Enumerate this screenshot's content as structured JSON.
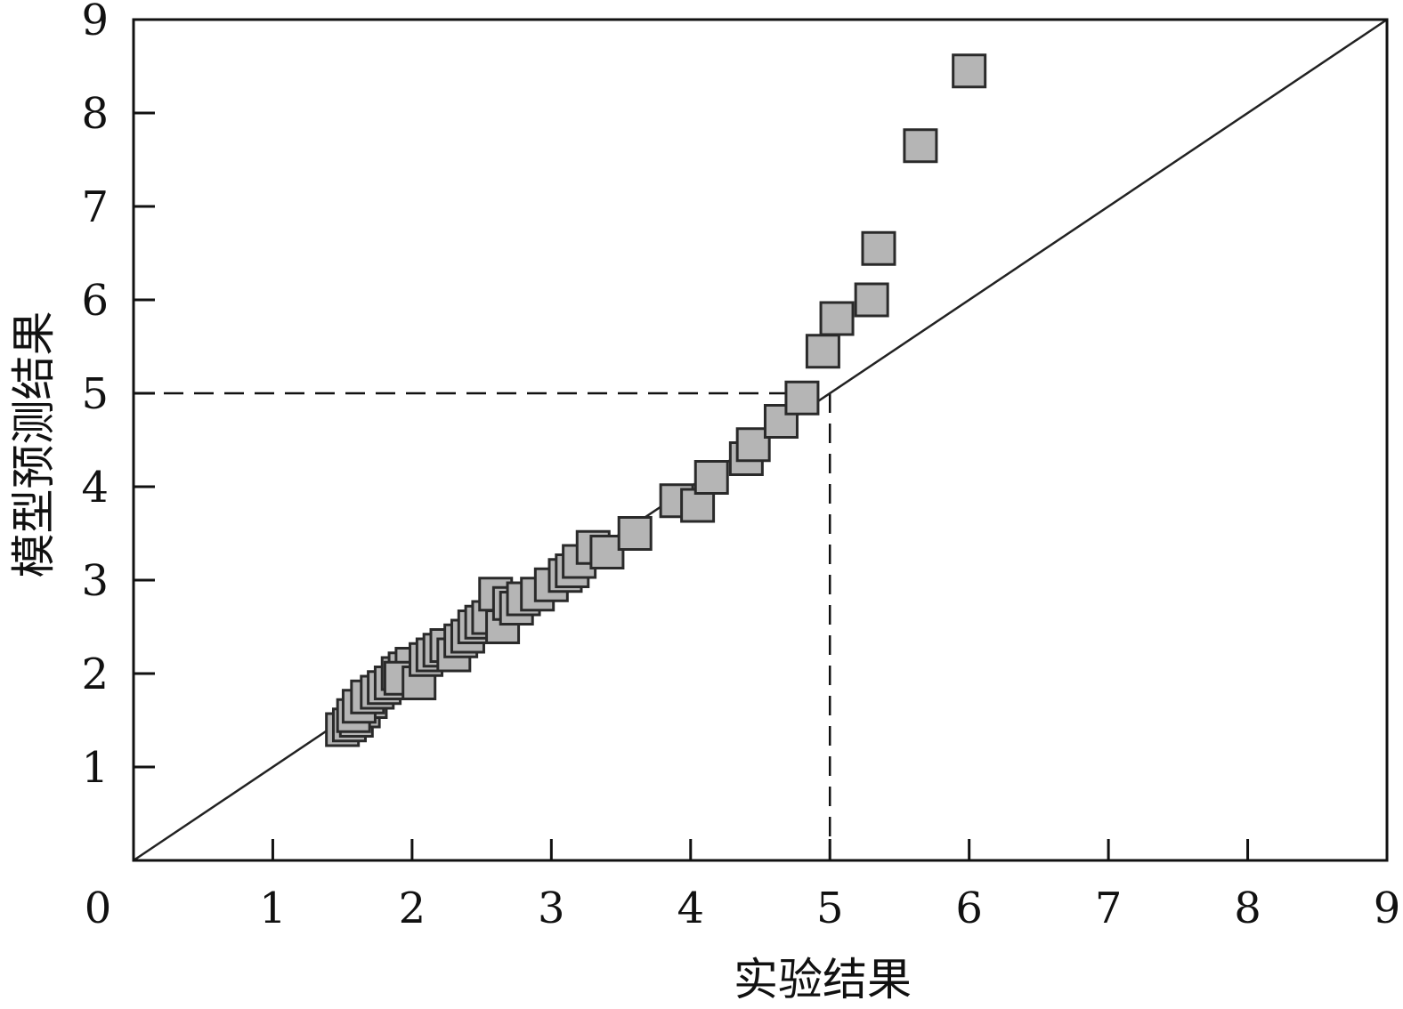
{
  "chart_data": {
    "type": "scatter",
    "title": "",
    "xlabel": "实验结果",
    "ylabel": "模型预测结果",
    "xlim": [
      0,
      9
    ],
    "ylim": [
      0,
      9
    ],
    "x_ticks": [
      0,
      1,
      2,
      3,
      4,
      5,
      6,
      7,
      8,
      9
    ],
    "y_ticks": [
      1,
      2,
      3,
      4,
      5,
      6,
      7,
      8,
      9
    ],
    "x_tick_labels": [
      "0",
      "1",
      "2",
      "3",
      "4",
      "5",
      "6",
      "7",
      "8",
      "9"
    ],
    "y_tick_labels": [
      "1",
      "2",
      "3",
      "4",
      "5",
      "6",
      "7",
      "8",
      "9"
    ],
    "grid": false,
    "legend": "none",
    "reference_line": {
      "type": "y=x",
      "from": [
        0,
        0
      ],
      "to": [
        9,
        9
      ]
    },
    "guide_lines": {
      "x": 5,
      "y": 5,
      "style": "dashed"
    },
    "marker": "square",
    "marker_color": "#b5b5b5",
    "series": [
      {
        "x": [
          1.5,
          1.55,
          1.6,
          1.65,
          1.7,
          1.58,
          1.62,
          1.68,
          1.75,
          1.8,
          1.85,
          1.9,
          1.95,
          2.0,
          1.92,
          2.05,
          2.1,
          2.15,
          2.2,
          2.25,
          2.3,
          2.35,
          2.4,
          2.45,
          2.5,
          2.55,
          2.6,
          2.65,
          2.7,
          2.75,
          2.8,
          2.9,
          3.0,
          3.1,
          3.15,
          3.2,
          3.3,
          3.4,
          3.6,
          3.9,
          4.05,
          4.15,
          4.4,
          4.45,
          4.65,
          4.8,
          4.95,
          5.05,
          5.3,
          5.35,
          5.65,
          6.0
        ],
        "y": [
          1.4,
          1.45,
          1.5,
          1.6,
          1.7,
          1.55,
          1.65,
          1.75,
          1.8,
          1.85,
          1.9,
          2.0,
          2.05,
          2.1,
          1.95,
          1.9,
          2.15,
          2.2,
          2.25,
          2.3,
          2.2,
          2.35,
          2.4,
          2.5,
          2.55,
          2.6,
          2.85,
          2.5,
          2.75,
          2.7,
          2.8,
          2.85,
          2.95,
          3.05,
          3.1,
          3.2,
          3.35,
          3.3,
          3.5,
          3.85,
          3.8,
          4.1,
          4.3,
          4.45,
          4.7,
          4.95,
          5.45,
          5.8,
          6.0,
          6.55,
          7.65,
          8.45
        ]
      }
    ]
  }
}
